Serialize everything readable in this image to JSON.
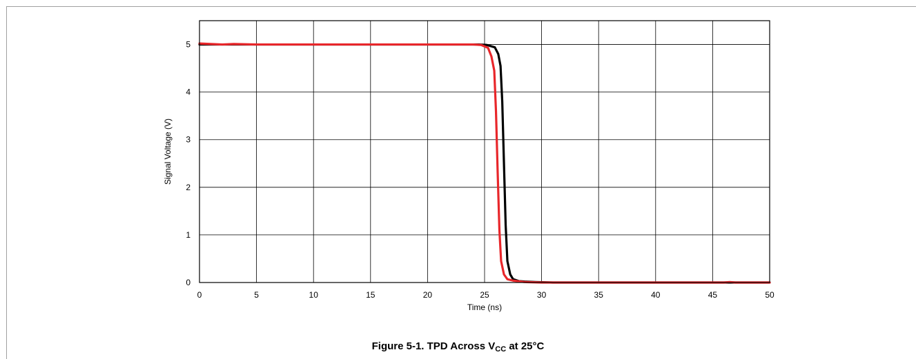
{
  "chart_data": {
    "type": "line",
    "title": "",
    "xlabel": "Time (ns)",
    "ylabel": "Signal Voltage (V)",
    "xlim": [
      0,
      50
    ],
    "ylim": [
      0,
      5.5
    ],
    "x_ticks": [
      "0",
      "5",
      "10",
      "15",
      "20",
      "25",
      "30",
      "35",
      "40",
      "45",
      "50"
    ],
    "y_ticks": [
      "0",
      "1",
      "2",
      "3",
      "4",
      "5"
    ],
    "grid": true,
    "legend": "none",
    "series": [
      {
        "color": "#000000",
        "points": [
          [
            0,
            5.0
          ],
          [
            5,
            5.0
          ],
          [
            10,
            5.0
          ],
          [
            15,
            5.0
          ],
          [
            20,
            5.0
          ],
          [
            24,
            5.0
          ],
          [
            24.5,
            5.0
          ],
          [
            25.2,
            4.99
          ],
          [
            25.9,
            4.94
          ],
          [
            26.2,
            4.8
          ],
          [
            26.4,
            4.55
          ],
          [
            26.55,
            3.8
          ],
          [
            26.7,
            2.5
          ],
          [
            26.85,
            1.2
          ],
          [
            27.0,
            0.45
          ],
          [
            27.25,
            0.17
          ],
          [
            27.5,
            0.07
          ],
          [
            28,
            0.03
          ],
          [
            28.5,
            0.02
          ],
          [
            29.5,
            0.01
          ],
          [
            31,
            0.0
          ],
          [
            35,
            0.0
          ],
          [
            40,
            0.0
          ],
          [
            45,
            0.0
          ],
          [
            50,
            0.0
          ]
        ]
      },
      {
        "color": "#e8262a",
        "points": [
          [
            0,
            5.02
          ],
          [
            1,
            5.01
          ],
          [
            2,
            5.0
          ],
          [
            3,
            5.01
          ],
          [
            5,
            5.0
          ],
          [
            10,
            5.0
          ],
          [
            15,
            5.0
          ],
          [
            20,
            5.0
          ],
          [
            24,
            5.0
          ],
          [
            24.7,
            4.99
          ],
          [
            25.3,
            4.93
          ],
          [
            25.6,
            4.75
          ],
          [
            25.85,
            4.45
          ],
          [
            26.0,
            3.6
          ],
          [
            26.15,
            2.3
          ],
          [
            26.3,
            1.1
          ],
          [
            26.45,
            0.45
          ],
          [
            26.7,
            0.17
          ],
          [
            27.0,
            0.07
          ],
          [
            27.5,
            0.04
          ],
          [
            28.5,
            0.01
          ],
          [
            30,
            0.0
          ],
          [
            35,
            0.0
          ],
          [
            40,
            0.0
          ],
          [
            46,
            0.0
          ],
          [
            46.5,
            0.01
          ],
          [
            47,
            0.0
          ],
          [
            50,
            0.0
          ]
        ]
      }
    ]
  },
  "caption": {
    "prefix": "Figure 5-1. TPD Across V",
    "sub": "CC",
    "suffix": " at 25°C"
  }
}
